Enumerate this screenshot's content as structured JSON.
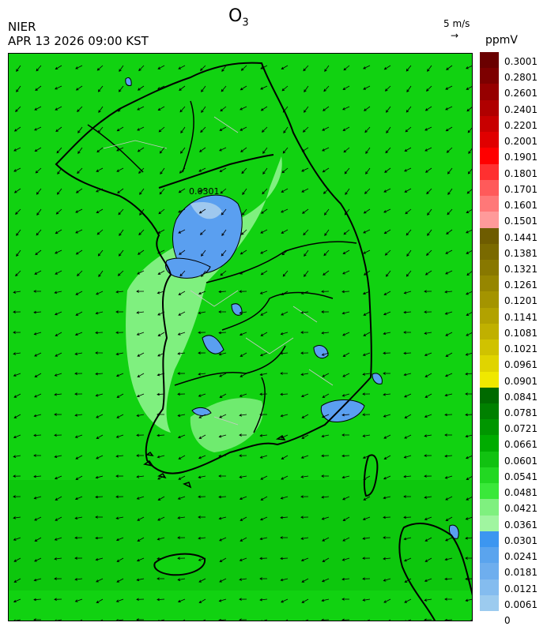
{
  "header": {
    "title_main": "O",
    "title_sub": "3",
    "organization": "NIER",
    "timestamp": "APR 13 2026 09:00 KST",
    "wind_reference": "5 m/s",
    "wind_reference_arrow": "→",
    "unit": "ppmV"
  },
  "map": {
    "contour_label": "0.0301",
    "colors": {
      "background_green": "#11d211",
      "light_green": "#7ff07f",
      "blue": "#5a9ff0",
      "light_blue": "#9fc8ee",
      "boundary": "#000000",
      "district_line": "#c8c8c8"
    }
  },
  "legend": {
    "labels": [
      "0.3001",
      "0.2801",
      "0.2601",
      "0.2401",
      "0.2201",
      "0.2001",
      "0.1901",
      "0.1801",
      "0.1701",
      "0.1601",
      "0.1501",
      "0.1441",
      "0.1381",
      "0.1321",
      "0.1261",
      "0.1201",
      "0.1141",
      "0.1081",
      "0.1021",
      "0.0961",
      "0.0901",
      "0.0841",
      "0.0781",
      "0.0721",
      "0.0661",
      "0.0601",
      "0.0541",
      "0.0481",
      "0.0421",
      "0.0361",
      "0.0301",
      "0.0241",
      "0.0181",
      "0.0121",
      "0.0061",
      "0"
    ],
    "colors": [
      "#6a0000",
      "#7d0000",
      "#960000",
      "#b00000",
      "#c80000",
      "#e00000",
      "#ff0000",
      "#ff3030",
      "#ff5a5a",
      "#ff7878",
      "#ff9a9a",
      "#6e5c00",
      "#7a6a00",
      "#887800",
      "#968600",
      "#a49400",
      "#b2a200",
      "#c0b000",
      "#d0c200",
      "#e0d400",
      "#f0e800",
      "#006a00",
      "#008000",
      "#009600",
      "#00ac00",
      "#11c211",
      "#22d822",
      "#3ae83a",
      "#7ff07f",
      "#a0f5a0",
      "#3c96f0",
      "#5aa4ee",
      "#6eaeee",
      "#84bcef",
      "#9ccbef"
    ]
  }
}
